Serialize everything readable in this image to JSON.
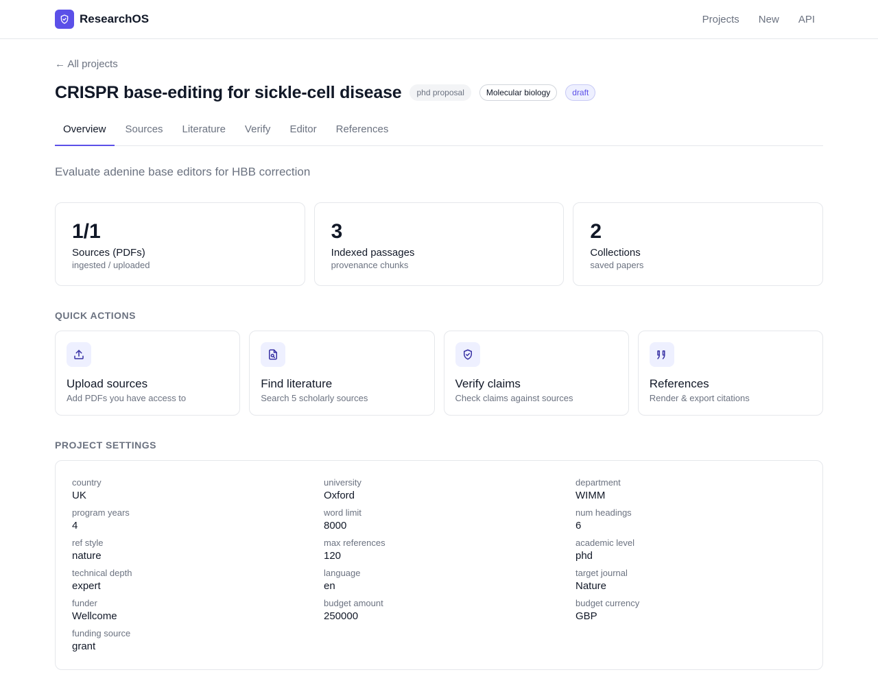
{
  "app": {
    "name": "ResearchOS"
  },
  "topnav": [
    {
      "label": "Projects"
    },
    {
      "label": "New"
    },
    {
      "label": "API"
    }
  ],
  "back_link": "← All projects",
  "project": {
    "title": "CRISPR base-editing for sickle-cell disease",
    "badges": [
      "phd proposal",
      "Molecular biology",
      "draft"
    ],
    "description": "Evaluate adenine base editors for HBB correction"
  },
  "tabs": [
    {
      "label": "Overview",
      "active": true
    },
    {
      "label": "Sources"
    },
    {
      "label": "Literature"
    },
    {
      "label": "Verify"
    },
    {
      "label": "Editor"
    },
    {
      "label": "References"
    }
  ],
  "stats": [
    {
      "value": "1/1",
      "label": "Sources (PDFs)",
      "sub": "ingested / uploaded"
    },
    {
      "value": "3",
      "label": "Indexed passages",
      "sub": "provenance chunks"
    },
    {
      "value": "2",
      "label": "Collections",
      "sub": "saved papers"
    }
  ],
  "quick_actions": {
    "heading": "QUICK ACTIONS",
    "items": [
      {
        "icon": "upload-icon",
        "title": "Upload sources",
        "sub": "Add PDFs you have access to"
      },
      {
        "icon": "file-search-icon",
        "title": "Find literature",
        "sub": "Search 5 scholarly sources"
      },
      {
        "icon": "shield-check-icon",
        "title": "Verify claims",
        "sub": "Check claims against sources"
      },
      {
        "icon": "quote-icon",
        "title": "References",
        "sub": "Render & export citations"
      }
    ]
  },
  "settings": {
    "heading": "PROJECT SETTINGS",
    "items": [
      {
        "key": "country",
        "value": "UK"
      },
      {
        "key": "university",
        "value": "Oxford"
      },
      {
        "key": "department",
        "value": "WIMM"
      },
      {
        "key": "program years",
        "value": "4"
      },
      {
        "key": "word limit",
        "value": "8000"
      },
      {
        "key": "num headings",
        "value": "6"
      },
      {
        "key": "ref style",
        "value": "nature"
      },
      {
        "key": "max references",
        "value": "120"
      },
      {
        "key": "academic level",
        "value": "phd"
      },
      {
        "key": "technical depth",
        "value": "expert"
      },
      {
        "key": "language",
        "value": "en"
      },
      {
        "key": "target journal",
        "value": "Nature"
      },
      {
        "key": "funder",
        "value": "Wellcome"
      },
      {
        "key": "budget amount",
        "value": "250000"
      },
      {
        "key": "budget currency",
        "value": "GBP"
      },
      {
        "key": "funding source",
        "value": "grant"
      }
    ]
  },
  "colors": {
    "accent": "#5b50e8",
    "accent_soft": "#eef0ff",
    "muted_text": "#6b7280",
    "border": "#e5e7eb"
  }
}
